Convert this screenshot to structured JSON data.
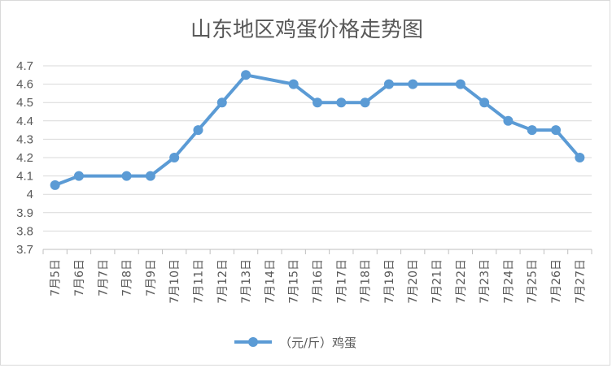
{
  "chart_data": {
    "type": "line",
    "title": "山东地区鸡蛋价格走势图",
    "xlabel": "",
    "ylabel": "",
    "ylim": [
      3.7,
      4.7
    ],
    "ytick_step": 0.1,
    "ytick_labels": [
      "3.7",
      "3.8",
      "3.9",
      "4",
      "4.1",
      "4.2",
      "4.3",
      "4.4",
      "4.5",
      "4.6",
      "4.7"
    ],
    "grid": true,
    "legend_position": "bottom",
    "categories": [
      "7月5日",
      "7月6日",
      "7月7日",
      "7月8日",
      "7月9日",
      "7月10日",
      "7月11日",
      "7月12日",
      "7月13日",
      "7月14日",
      "7月15日",
      "7月16日",
      "7月17日",
      "7月18日",
      "7月19日",
      "7月20日",
      "7月21日",
      "7月22日",
      "7月23日",
      "7月24日",
      "7月25日",
      "7月26日",
      "7月27日"
    ],
    "series": [
      {
        "name": "（元/斤）鸡蛋",
        "color": "#5b9bd5",
        "points": [
          {
            "x": "7月5日",
            "y": 4.05
          },
          {
            "x": "7月6日",
            "y": 4.1
          },
          {
            "x": "7月8日",
            "y": 4.1
          },
          {
            "x": "7月9日",
            "y": 4.1
          },
          {
            "x": "7月10日",
            "y": 4.2
          },
          {
            "x": "7月11日",
            "y": 4.35
          },
          {
            "x": "7月12日",
            "y": 4.5
          },
          {
            "x": "7月13日",
            "y": 4.65
          },
          {
            "x": "7月15日",
            "y": 4.6
          },
          {
            "x": "7月16日",
            "y": 4.5
          },
          {
            "x": "7月17日",
            "y": 4.5
          },
          {
            "x": "7月18日",
            "y": 4.5
          },
          {
            "x": "7月19日",
            "y": 4.6
          },
          {
            "x": "7月20日",
            "y": 4.6
          },
          {
            "x": "7月22日",
            "y": 4.6
          },
          {
            "x": "7月23日",
            "y": 4.5
          },
          {
            "x": "7月24日",
            "y": 4.4
          },
          {
            "x": "7月25日",
            "y": 4.35
          },
          {
            "x": "7月26日",
            "y": 4.35
          },
          {
            "x": "7月27日",
            "y": 4.2
          }
        ]
      }
    ],
    "colors": {
      "gridline": "#d9d9d9",
      "axis": "#bfbfbf",
      "text": "#595959"
    }
  }
}
